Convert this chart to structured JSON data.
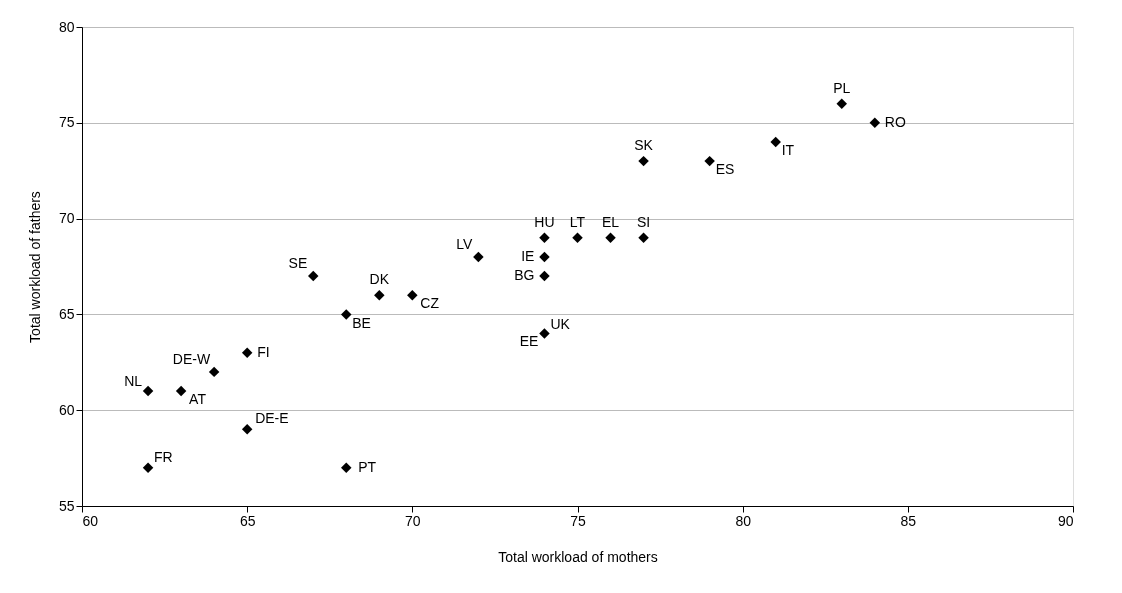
{
  "chart_data": {
    "type": "scatter",
    "xlabel": "Total workload of mothers",
    "ylabel": "Total workload of fathers",
    "x": [
      62,
      63,
      64,
      65,
      65,
      62,
      68,
      68,
      67,
      69,
      70,
      72,
      74,
      74,
      74,
      74,
      75,
      76,
      77,
      77,
      79,
      81,
      83,
      84
    ],
    "series": [
      {
        "color": "#000000",
        "values": [
          61,
          61,
          62,
          63,
          59,
          57,
          57,
          65,
          67,
          66,
          66,
          68,
          69,
          68,
          67,
          64,
          69,
          69,
          69,
          73,
          73,
          74,
          76,
          75
        ]
      }
    ],
    "xlim": [
      60,
      90
    ],
    "xticks": [
      60,
      65,
      70,
      75,
      80,
      85,
      90
    ],
    "ylim": [
      55,
      80
    ],
    "yticks": [
      55,
      60,
      65,
      70,
      75,
      80
    ],
    "grid": "y",
    "marker": "diamond",
    "annotations": [
      {
        "text": "NL",
        "x": 62,
        "y": 61
      },
      {
        "text": "AT",
        "x": 63,
        "y": 61
      },
      {
        "text": "DE-W",
        "x": 64,
        "y": 62
      },
      {
        "text": "FI",
        "x": 65,
        "y": 63
      },
      {
        "text": "DE-E",
        "x": 65,
        "y": 59
      },
      {
        "text": "FR",
        "x": 62,
        "y": 57
      },
      {
        "text": "PT",
        "x": 68,
        "y": 57
      },
      {
        "text": "BE",
        "x": 68,
        "y": 65
      },
      {
        "text": "SE",
        "x": 67,
        "y": 67
      },
      {
        "text": "DK",
        "x": 69,
        "y": 66
      },
      {
        "text": "CZ",
        "x": 70,
        "y": 66
      },
      {
        "text": "LV",
        "x": 72,
        "y": 68
      },
      {
        "text": "HU",
        "x": 74,
        "y": 69
      },
      {
        "text": "IE",
        "x": 74,
        "y": 68
      },
      {
        "text": "BG",
        "x": 74,
        "y": 67
      },
      {
        "text": "EE",
        "x": 74,
        "y": 64
      },
      {
        "text": "UK",
        "x": 74,
        "y": 64
      },
      {
        "text": "LT",
        "x": 75,
        "y": 69
      },
      {
        "text": "EL",
        "x": 76,
        "y": 69
      },
      {
        "text": "SI",
        "x": 77,
        "y": 69
      },
      {
        "text": "SK",
        "x": 77,
        "y": 73
      },
      {
        "text": "ES",
        "x": 79,
        "y": 73
      },
      {
        "text": "IT",
        "x": 81,
        "y": 74
      },
      {
        "text": "PL",
        "x": 83,
        "y": 76
      },
      {
        "text": "RO",
        "x": 84,
        "y": 75
      }
    ]
  }
}
